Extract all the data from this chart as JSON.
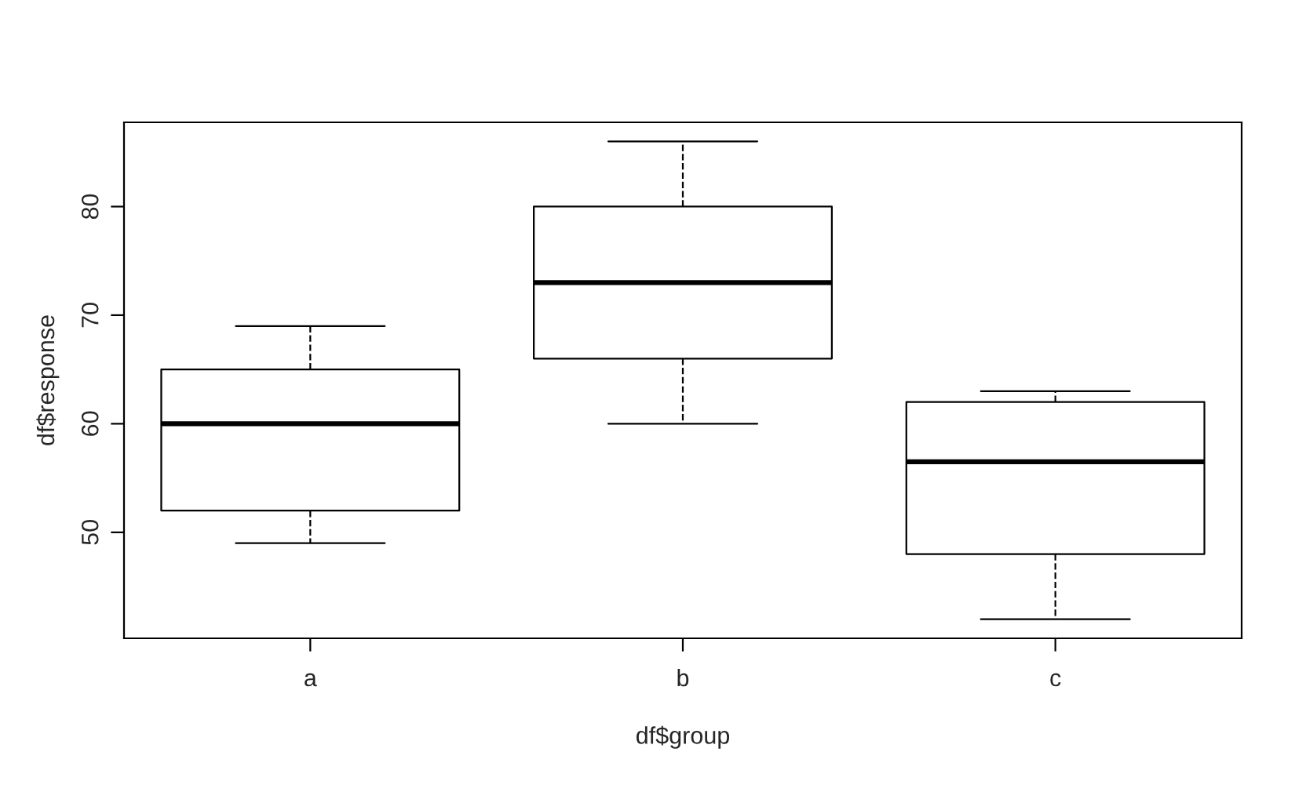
{
  "chart_data": {
    "type": "box",
    "xlabel": "df$group",
    "ylabel": "df$response",
    "categories": [
      "a",
      "b",
      "c"
    ],
    "boxes": [
      {
        "low": 49,
        "q1": 52,
        "median": 60,
        "q3": 65,
        "high": 69
      },
      {
        "low": 60,
        "q1": 66,
        "median": 73,
        "q3": 80,
        "high": 86
      },
      {
        "low": 42,
        "q1": 48,
        "median": 56.5,
        "q3": 62,
        "high": 63
      }
    ],
    "ylim": [
      40.24,
      87.76
    ],
    "yticks": [
      50,
      60,
      70,
      80
    ],
    "line_style": "dashed",
    "grid": false,
    "legend": false
  }
}
